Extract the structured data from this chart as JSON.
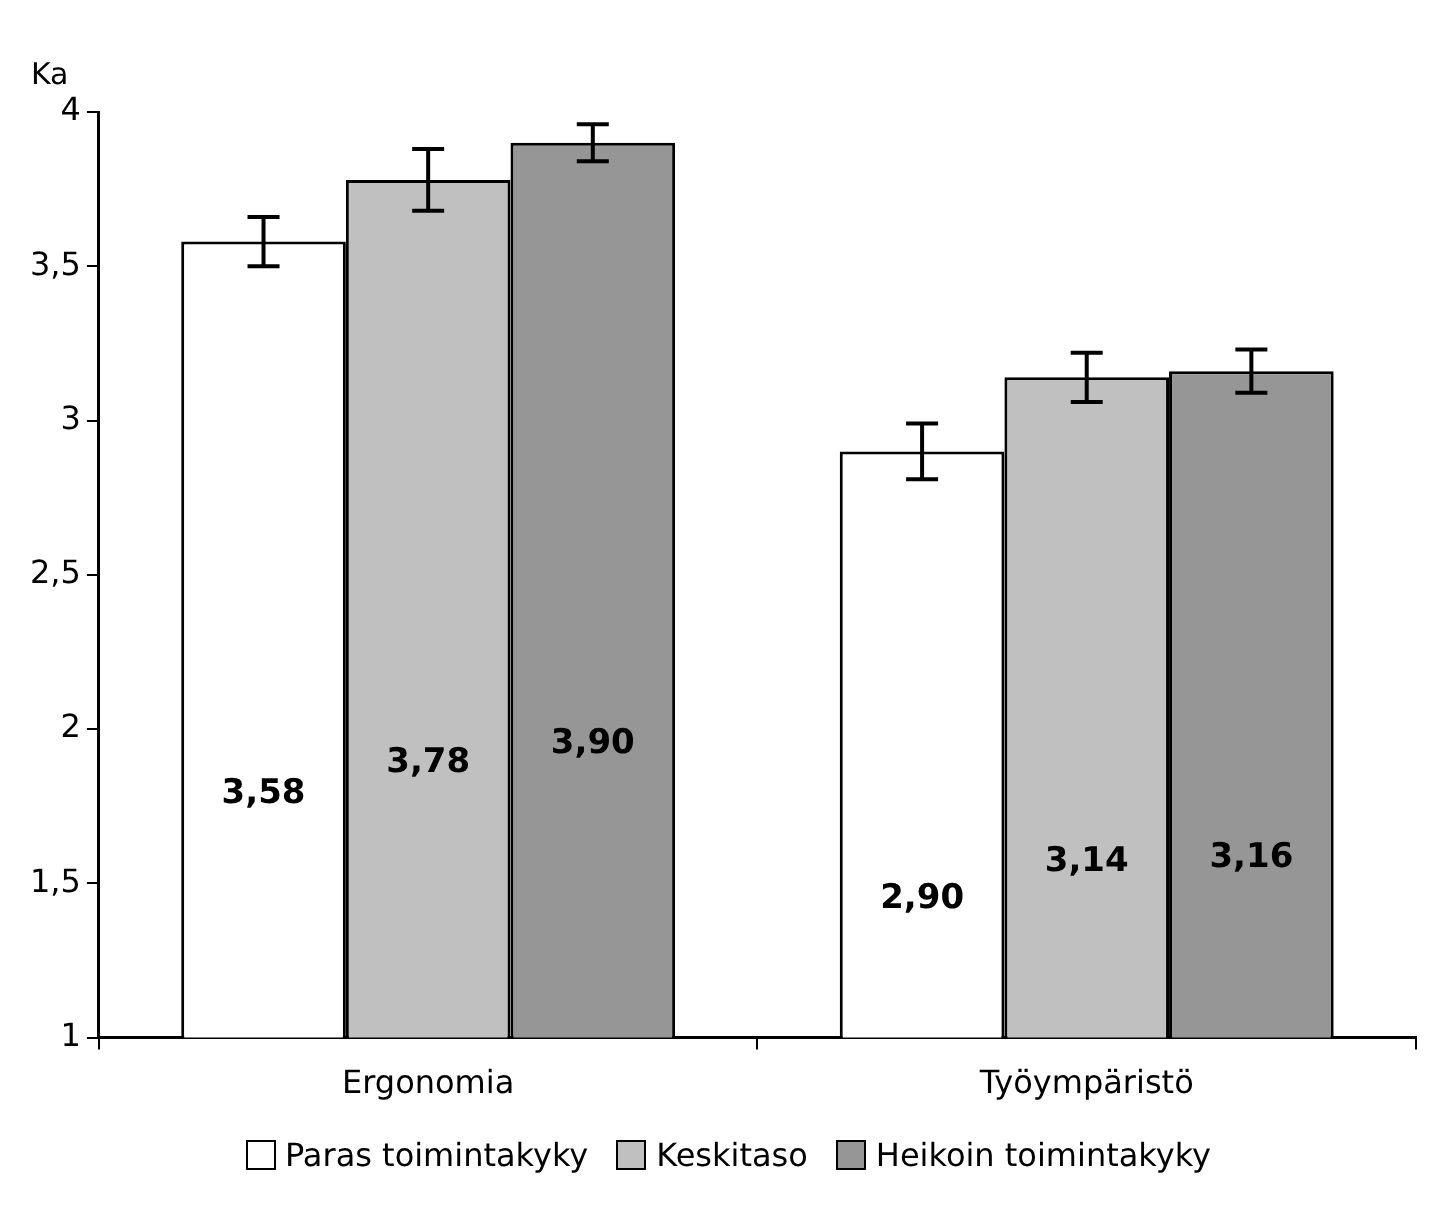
{
  "chart_data": {
    "type": "bar",
    "ylabel": "Ka",
    "categories": [
      "Ergonomia",
      "Työympäristö"
    ],
    "series": [
      {
        "name": "Paras toimintakyky",
        "color": "#ffffff",
        "values": [
          3.58,
          2.9
        ],
        "errors": [
          0.08,
          0.09
        ],
        "value_labels": [
          "3,58",
          "2,90"
        ]
      },
      {
        "name": "Keskitaso",
        "color": "#c0c0c0",
        "values": [
          3.78,
          3.14
        ],
        "errors": [
          0.1,
          0.08
        ],
        "value_labels": [
          "3,78",
          "3,14"
        ]
      },
      {
        "name": "Heikoin toimintakyky",
        "color": "#969696",
        "values": [
          3.9,
          3.16
        ],
        "errors": [
          0.06,
          0.07
        ],
        "value_labels": [
          "3,90",
          "3,16"
        ]
      }
    ],
    "ylim": [
      1,
      4
    ],
    "yticks": [
      1,
      {
        "value": 1.5,
        "label": "1,5"
      },
      2,
      {
        "value": 2.5,
        "label": "2,5"
      },
      3,
      {
        "value": 3.5,
        "label": "3,5"
      },
      4
    ],
    "grid": false,
    "legend": "bottom"
  }
}
